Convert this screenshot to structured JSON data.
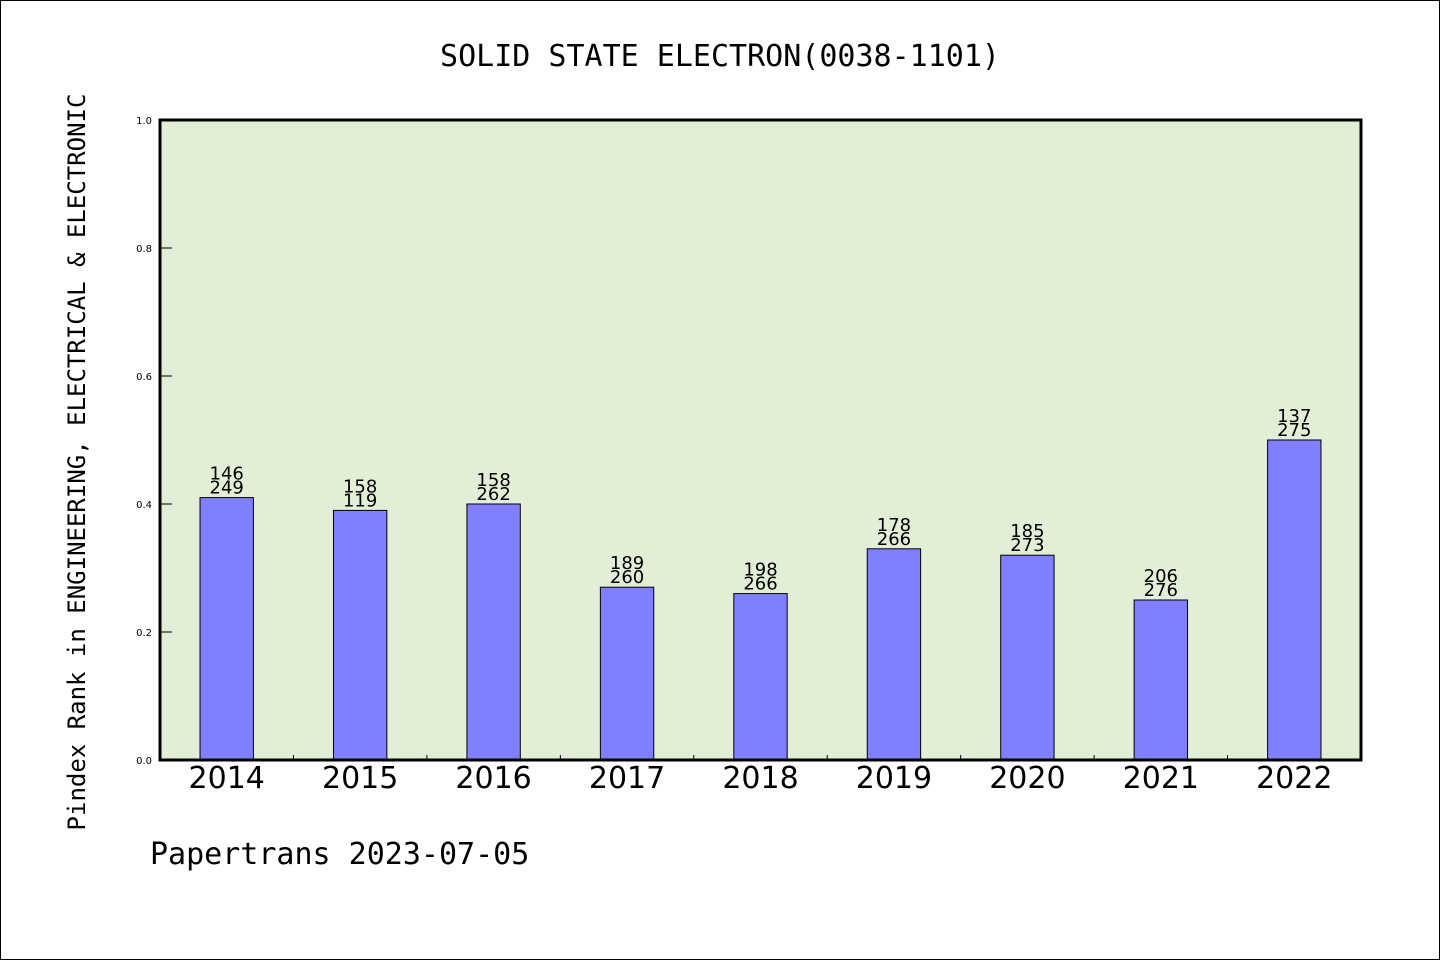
{
  "chart_data": {
    "type": "bar",
    "title": "SOLID STATE ELECTRON(0038-1101)",
    "ylabel": "Pindex Rank in ENGINEERING, ELECTRICAL & ELECTRONIC",
    "xlabel": "",
    "footer": "Papertrans 2023-07-05",
    "categories": [
      "2014",
      "2015",
      "2016",
      "2017",
      "2018",
      "2019",
      "2020",
      "2021",
      "2022"
    ],
    "values": [
      0.41,
      0.39,
      0.4,
      0.27,
      0.26,
      0.33,
      0.32,
      0.25,
      0.5
    ],
    "labels_top": [
      "146",
      "158",
      "158",
      "189",
      "198",
      "178",
      "185",
      "206",
      "137"
    ],
    "labels_bottom": [
      "249",
      "119",
      "262",
      "260",
      "266",
      "266",
      "273",
      "276",
      "275"
    ],
    "ylim": [
      0,
      1.0
    ],
    "yticks": [
      "0.0",
      "0.2",
      "0.4",
      "0.6",
      "0.8",
      "1.0"
    ],
    "grid": false,
    "colors": {
      "plot_background": "#e2efd6",
      "bar_fill": "#8080ff",
      "bar_stroke": "#000000"
    }
  }
}
